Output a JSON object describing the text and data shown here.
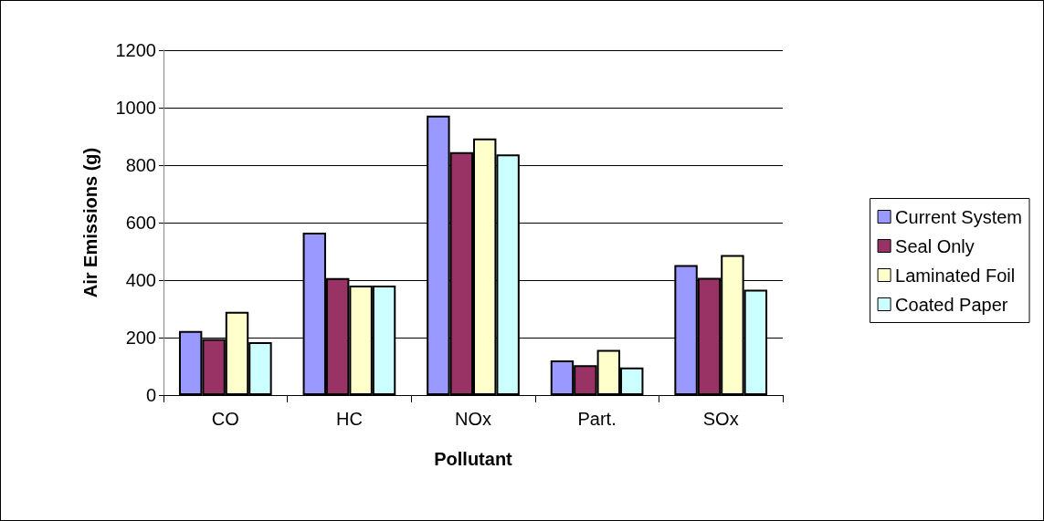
{
  "chart_data": {
    "type": "bar",
    "xlabel": "Pollutant",
    "ylabel": "Air Emissions (g)",
    "categories": [
      "CO",
      "HC",
      "NOx",
      "Part.",
      "SOx"
    ],
    "series": [
      {
        "name": "Current System",
        "color": "#9999ff",
        "values": [
          223,
          565,
          972,
          121,
          452
        ]
      },
      {
        "name": "Seal Only",
        "color": "#993366",
        "values": [
          195,
          407,
          845,
          104,
          408
        ]
      },
      {
        "name": "Laminated Foil",
        "color": "#ffffcc",
        "values": [
          290,
          381,
          893,
          157,
          487
        ]
      },
      {
        "name": "Coated Paper",
        "color": "#ccffff",
        "values": [
          184,
          381,
          837,
          96,
          367
        ]
      }
    ],
    "ylim": [
      0,
      1200
    ],
    "yticks": [
      0,
      200,
      400,
      600,
      800,
      1000,
      1200
    ],
    "grid": "y",
    "legend": "right"
  }
}
